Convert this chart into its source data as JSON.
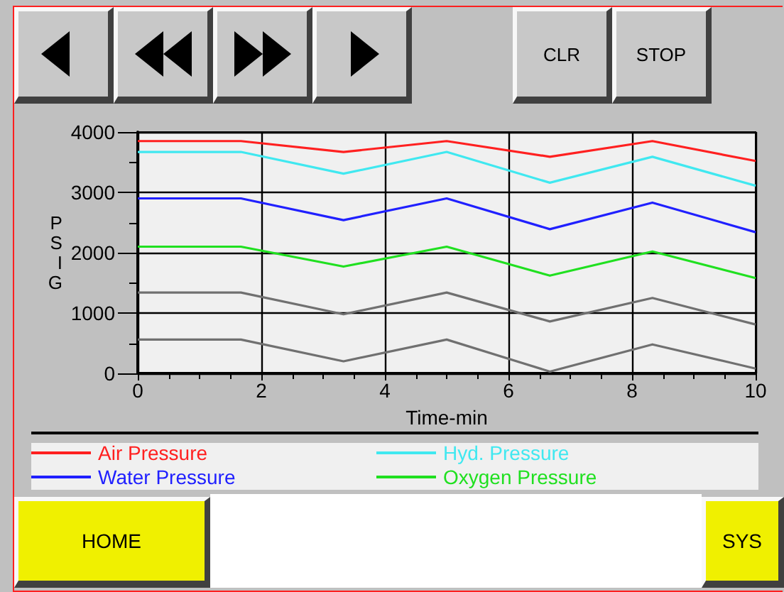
{
  "chart_data": {
    "type": "line",
    "xlabel": "Time-min",
    "ylabel": "PSIG",
    "x": [
      0,
      1.67,
      3.33,
      5,
      6.67,
      8.33,
      10
    ],
    "series": [
      {
        "name": "Air Pressure",
        "color": "#ff2020",
        "values": [
          3850,
          3850,
          3670,
          3850,
          3590,
          3850,
          3520
        ]
      },
      {
        "name": "Hyd. Pressure",
        "color": "#40e8f0",
        "values": [
          3670,
          3670,
          3310,
          3670,
          3160,
          3590,
          3110
        ]
      },
      {
        "name": "Water Pressure",
        "color": "#2020ff",
        "values": [
          2900,
          2900,
          2540,
          2900,
          2390,
          2830,
          2340
        ]
      },
      {
        "name": "Oxygen Pressure",
        "color": "#20e020",
        "values": [
          2100,
          2100,
          1770,
          2100,
          1620,
          2020,
          1580
        ]
      },
      {
        "color": "#707070",
        "values": [
          1340,
          1340,
          980,
          1340,
          860,
          1250,
          810
        ]
      },
      {
        "color": "#707070",
        "values": [
          560,
          560,
          200,
          560,
          30,
          480,
          80
        ]
      }
    ],
    "xlim": [
      0,
      10
    ],
    "xticks": [
      0,
      2,
      4,
      6,
      8,
      10
    ],
    "ylim": [
      0,
      4000
    ],
    "yticks": [
      0,
      1000,
      2000,
      3000,
      4000
    ],
    "grid": true,
    "legend": "bottom",
    "marker": "none",
    "line_style": "solid",
    "annotations": [
      "CLR",
      "STOP",
      "HOME",
      "SYS"
    ]
  }
}
